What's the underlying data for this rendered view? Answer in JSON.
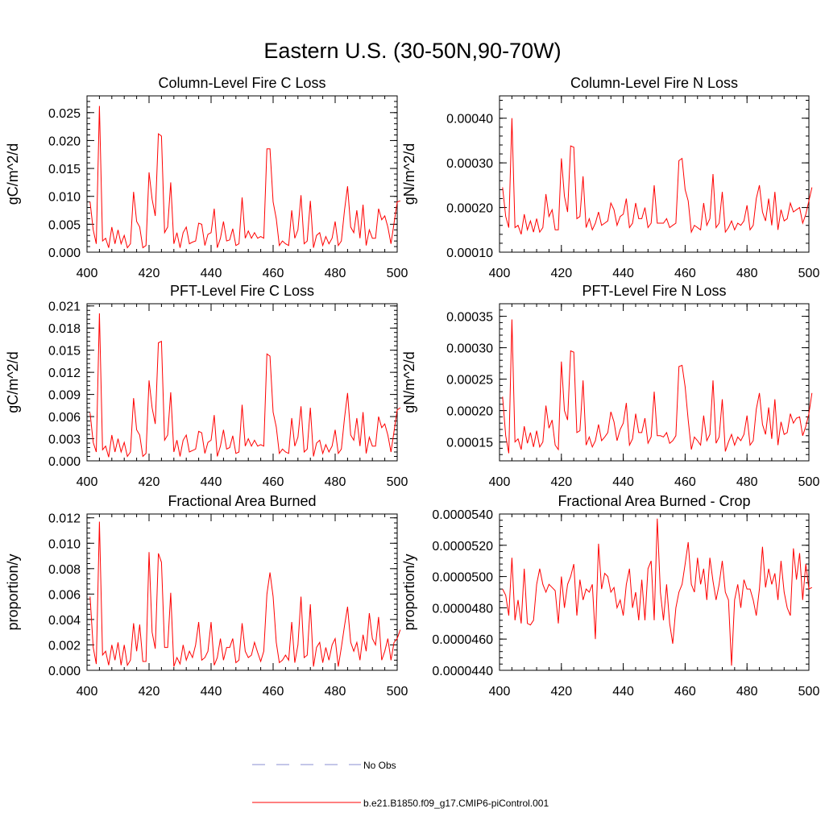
{
  "figure": {
    "title": "Eastern U.S. (30-50N,90-70W)"
  },
  "legend": {
    "entries": [
      {
        "label": "No Obs",
        "color": "#8a8fd0",
        "dashed": true
      },
      {
        "label": "b.e21.B1850.f09_g17.CMIP6-piControl.001",
        "color": "#ff0000",
        "dashed": false
      }
    ]
  },
  "chart_data": [
    {
      "type": "line",
      "title": "Column-Level Fire C Loss",
      "ylabel": "gC/m^2/d",
      "xlim": [
        400,
        500
      ],
      "ylim": [
        0,
        0.028
      ],
      "yticks": [
        0.0,
        0.005,
        0.01,
        0.015,
        0.02,
        0.025
      ],
      "yticklabels": [
        "0.000",
        "0.005",
        "0.010",
        "0.015",
        "0.020",
        "0.025"
      ],
      "xticks": [
        400,
        420,
        440,
        460,
        480,
        500
      ],
      "xticklabels": [
        "400",
        "420",
        "440",
        "460",
        "480",
        "500"
      ],
      "series": [
        {
          "color": "#ff0000",
          "x_start": 401,
          "values": [
            0.009,
            0.004,
            0.0015,
            0.0262,
            0.002,
            0.0025,
            0.0008,
            0.0045,
            0.0015,
            0.004,
            0.0015,
            0.003,
            0.0008,
            0.0015,
            0.0108,
            0.0055,
            0.0045,
            0.0008,
            0.0012,
            0.0143,
            0.0095,
            0.0065,
            0.0212,
            0.0208,
            0.0035,
            0.0045,
            0.0125,
            0.0015,
            0.0035,
            0.0008,
            0.0035,
            0.0045,
            0.0015,
            0.0018,
            0.002,
            0.0052,
            0.005,
            0.0012,
            0.0032,
            0.0035,
            0.0078,
            0.0008,
            0.0025,
            0.0055,
            0.002,
            0.0022,
            0.0042,
            0.0012,
            0.0015,
            0.0098,
            0.0025,
            0.0038,
            0.0025,
            0.0035,
            0.0025,
            0.0028,
            0.0025,
            0.0185,
            0.0185,
            0.009,
            0.006,
            0.0012,
            0.002,
            0.0015,
            0.0012,
            0.0075,
            0.0025,
            0.004,
            0.0102,
            0.0015,
            0.002,
            0.0092,
            0.0008,
            0.003,
            0.0035,
            0.0012,
            0.0028,
            0.0015,
            0.0025,
            0.0055,
            0.0012,
            0.002,
            0.0075,
            0.0118,
            0.0045,
            0.0035,
            0.0075,
            0.0025,
            0.0085,
            0.0012,
            0.004,
            0.0025,
            0.0025,
            0.0078,
            0.0058,
            0.0065,
            0.0045,
            0.0015,
            0.0052,
            0.009,
            0.0092
          ]
        }
      ]
    },
    {
      "type": "line",
      "title": "Column-Level Fire N Loss",
      "ylabel": "gN/m^2/d",
      "xlim": [
        400,
        500
      ],
      "ylim": [
        0.0001,
        0.00045
      ],
      "yticks": [
        0.0001,
        0.0002,
        0.0003,
        0.0004
      ],
      "yticklabels": [
        "0.00010",
        "0.00020",
        "0.00030",
        "0.00040"
      ],
      "xticks": [
        400,
        420,
        440,
        460,
        480,
        500
      ],
      "xticklabels": [
        "400",
        "420",
        "440",
        "460",
        "480",
        "500"
      ],
      "series": [
        {
          "color": "#ff0000",
          "x_start": 401,
          "values": [
            0.000245,
            0.00018,
            0.000155,
            0.0004,
            0.000155,
            0.00016,
            0.00014,
            0.000185,
            0.00015,
            0.00017,
            0.000145,
            0.000175,
            0.000145,
            0.000155,
            0.00023,
            0.00018,
            0.000195,
            0.00015,
            0.00015,
            0.00031,
            0.000225,
            0.00019,
            0.000338,
            0.000335,
            0.000175,
            0.00018,
            0.00027,
            0.000155,
            0.000175,
            0.00015,
            0.000165,
            0.00019,
            0.00016,
            0.000165,
            0.00017,
            0.00021,
            0.000195,
            0.00016,
            0.00018,
            0.000185,
            0.00022,
            0.000155,
            0.000165,
            0.00021,
            0.000175,
            0.000175,
            0.0002,
            0.000155,
            0.000165,
            0.00025,
            0.000165,
            0.000165,
            0.000165,
            0.000175,
            0.000155,
            0.00016,
            0.000165,
            0.000305,
            0.00031,
            0.00024,
            0.000215,
            0.000145,
            0.00016,
            0.000155,
            0.00015,
            0.00021,
            0.00016,
            0.000175,
            0.000275,
            0.000155,
            0.000165,
            0.000235,
            0.000145,
            0.000155,
            0.00017,
            0.00015,
            0.000165,
            0.00016,
            0.00017,
            0.000205,
            0.00015,
            0.00016,
            0.00022,
            0.00025,
            0.00019,
            0.00017,
            0.00022,
            0.00016,
            0.000235,
            0.00015,
            0.000195,
            0.00017,
            0.000175,
            0.00021,
            0.00019,
            0.000195,
            0.0002,
            0.000165,
            0.000185,
            0.000215,
            0.000245
          ]
        }
      ]
    },
    {
      "type": "line",
      "title": "PFT-Level Fire C Loss",
      "ylabel": "gC/m^2/d",
      "xlim": [
        400,
        500
      ],
      "ylim": [
        0,
        0.0213
      ],
      "yticks": [
        0.0,
        0.003,
        0.006,
        0.009,
        0.012,
        0.015,
        0.018,
        0.021
      ],
      "yticklabels": [
        "0.000",
        "0.003",
        "0.006",
        "0.009",
        "0.012",
        "0.015",
        "0.018",
        "0.021"
      ],
      "xticks": [
        400,
        420,
        440,
        460,
        480,
        500
      ],
      "xticklabels": [
        "400",
        "420",
        "440",
        "460",
        "480",
        "500"
      ],
      "series": [
        {
          "color": "#ff0000",
          "x_start": 401,
          "values": [
            0.0065,
            0.0025,
            0.0012,
            0.02,
            0.0015,
            0.002,
            0.0005,
            0.0035,
            0.0012,
            0.003,
            0.0012,
            0.0025,
            0.0006,
            0.0012,
            0.0085,
            0.0042,
            0.0035,
            0.0006,
            0.001,
            0.0109,
            0.0072,
            0.005,
            0.016,
            0.0162,
            0.0028,
            0.0035,
            0.0093,
            0.0012,
            0.0028,
            0.0006,
            0.0028,
            0.0035,
            0.0012,
            0.0014,
            0.0016,
            0.004,
            0.0038,
            0.001,
            0.0025,
            0.0028,
            0.0062,
            0.0006,
            0.002,
            0.0042,
            0.0016,
            0.0018,
            0.0034,
            0.001,
            0.0012,
            0.0076,
            0.002,
            0.003,
            0.002,
            0.0028,
            0.002,
            0.0022,
            0.002,
            0.0145,
            0.0142,
            0.0066,
            0.0046,
            0.001,
            0.0016,
            0.0012,
            0.001,
            0.0058,
            0.002,
            0.0032,
            0.0074,
            0.0012,
            0.0016,
            0.0072,
            0.0006,
            0.0024,
            0.0028,
            0.001,
            0.0022,
            0.0012,
            0.002,
            0.0042,
            0.001,
            0.0016,
            0.0058,
            0.0092,
            0.0035,
            0.0028,
            0.0058,
            0.002,
            0.0066,
            0.001,
            0.0032,
            0.002,
            0.002,
            0.006,
            0.0045,
            0.005,
            0.0035,
            0.0012,
            0.004,
            0.0069,
            0.0072
          ]
        }
      ]
    },
    {
      "type": "line",
      "title": "PFT-Level Fire N Loss",
      "ylabel": "gN/m^2/d",
      "xlim": [
        400,
        500
      ],
      "ylim": [
        0.00012,
        0.00037
      ],
      "yticks": [
        0.00015,
        0.0002,
        0.00025,
        0.0003,
        0.00035
      ],
      "yticklabels": [
        "0.00015",
        "0.00020",
        "0.00025",
        "0.00030",
        "0.00035"
      ],
      "xticks": [
        400,
        420,
        440,
        460,
        480,
        500
      ],
      "xticklabels": [
        "400",
        "420",
        "440",
        "460",
        "480",
        "500"
      ],
      "series": [
        {
          "color": "#ff0000",
          "x_start": 401,
          "values": [
            0.000222,
            0.00016,
            0.000132,
            0.000345,
            0.00015,
            0.000155,
            0.000138,
            0.000175,
            0.000148,
            0.000165,
            0.000142,
            0.000168,
            0.000142,
            0.00015,
            0.000208,
            0.000172,
            0.000185,
            0.000145,
            0.000138,
            0.000278,
            0.0002,
            0.000185,
            0.000295,
            0.000293,
            0.000165,
            0.000168,
            0.000248,
            0.000145,
            0.000158,
            0.000142,
            0.000152,
            0.000178,
            0.000152,
            0.000158,
            0.000165,
            0.000198,
            0.000182,
            0.000152,
            0.00017,
            0.00018,
            0.000212,
            0.000145,
            0.000155,
            0.000195,
            0.000165,
            0.000165,
            0.000188,
            0.000148,
            0.000158,
            0.00023,
            0.00016,
            0.00016,
            0.000158,
            0.000165,
            0.000148,
            0.000152,
            0.00016,
            0.00027,
            0.000272,
            0.000238,
            0.000185,
            0.000138,
            0.000158,
            0.000152,
            0.000145,
            0.000192,
            0.000152,
            0.000162,
            0.000248,
            0.000148,
            0.000158,
            0.000218,
            0.000135,
            0.00015,
            0.000162,
            0.000145,
            0.000158,
            0.000152,
            0.000162,
            0.000192,
            0.000145,
            0.000152,
            0.000202,
            0.000228,
            0.000178,
            0.000162,
            0.000205,
            0.000155,
            0.000218,
            0.000145,
            0.000182,
            0.000162,
            0.000165,
            0.000195,
            0.00018,
            0.000188,
            0.00019,
            0.00016,
            0.000175,
            0.000195,
            0.000228
          ]
        }
      ]
    },
    {
      "type": "line",
      "title": "Fractional Area Burned",
      "ylabel": "proportion/y",
      "xlim": [
        400,
        500
      ],
      "ylim": [
        0,
        0.0123
      ],
      "yticks": [
        0.0,
        0.002,
        0.004,
        0.006,
        0.008,
        0.01,
        0.012
      ],
      "yticklabels": [
        "0.000",
        "0.002",
        "0.004",
        "0.006",
        "0.008",
        "0.010",
        "0.012"
      ],
      "xticks": [
        400,
        420,
        440,
        460,
        480,
        500
      ],
      "xticklabels": [
        "400",
        "420",
        "440",
        "460",
        "480",
        "500"
      ],
      "series": [
        {
          "color": "#ff0000",
          "x_start": 401,
          "values": [
            0.0058,
            0.0018,
            0.0005,
            0.0117,
            0.0012,
            0.0015,
            0.0004,
            0.002,
            0.0008,
            0.0022,
            0.0004,
            0.002,
            0.0004,
            0.0008,
            0.0037,
            0.0015,
            0.0036,
            0.0007,
            0.0007,
            0.0093,
            0.003,
            0.0017,
            0.0092,
            0.0085,
            0.0018,
            0.0018,
            0.0061,
            0.0003,
            0.001,
            0.0005,
            0.002,
            0.0008,
            0.0015,
            0.001,
            0.002,
            0.0038,
            0.0008,
            0.001,
            0.0015,
            0.0038,
            0.0004,
            0.001,
            0.0025,
            0.0008,
            0.0018,
            0.0018,
            0.0025,
            0.0006,
            0.0008,
            0.0037,
            0.0015,
            0.001,
            0.0012,
            0.0022,
            0.0014,
            0.0007,
            0.0015,
            0.006,
            0.0077,
            0.0058,
            0.0022,
            0.0006,
            0.0008,
            0.0012,
            0.0008,
            0.0038,
            0.0006,
            0.002,
            0.0058,
            0.001,
            0.0012,
            0.0052,
            0.0003,
            0.0018,
            0.0022,
            0.0006,
            0.0018,
            0.0008,
            0.002,
            0.0025,
            0.0003,
            0.0018,
            0.0035,
            0.005,
            0.0022,
            0.0015,
            0.0022,
            0.0008,
            0.0028,
            0.0015,
            0.0045,
            0.0025,
            0.002,
            0.0042,
            0.0008,
            0.0015,
            0.0025,
            0.0008,
            0.0022,
            0.0025,
            0.0032
          ]
        }
      ]
    },
    {
      "type": "line",
      "title": "Fractional Area Burned - Crop",
      "ylabel": "proportion/y",
      "xlim": [
        400,
        500
      ],
      "ylim": [
        4.4e-05,
        5.4e-05
      ],
      "yticks": [
        4.4e-05,
        4.6e-05,
        4.8e-05,
        5e-05,
        5.2e-05,
        5.4e-05
      ],
      "yticklabels": [
        "0.0000440",
        "0.0000460",
        "0.0000480",
        "0.0000500",
        "0.0000520",
        "0.0000540"
      ],
      "xticks": [
        400,
        420,
        440,
        460,
        480,
        500
      ],
      "xticklabels": [
        "400",
        "420",
        "440",
        "460",
        "480",
        "500"
      ],
      "series": [
        {
          "color": "#ff0000",
          "x_start": 401,
          "values": [
            4.92e-05,
            4.88e-05,
            4.75e-05,
            5.12e-05,
            4.72e-05,
            4.85e-05,
            4.7e-05,
            5.05e-05,
            4.7e-05,
            4.69e-05,
            4.72e-05,
            4.95e-05,
            5.05e-05,
            4.95e-05,
            4.9e-05,
            4.95e-05,
            4.93e-05,
            4.91e-05,
            4.7e-05,
            5e-05,
            4.8e-05,
            4.95e-05,
            5e-05,
            5.08e-05,
            4.75e-05,
            4.98e-05,
            4.85e-05,
            4.92e-05,
            4.9e-05,
            4.95e-05,
            4.6e-05,
            5.21e-05,
            4.92e-05,
            5.02e-05,
            5e-05,
            4.9e-05,
            4.93e-05,
            4.8e-05,
            4.85e-05,
            4.75e-05,
            4.95e-05,
            5.05e-05,
            4.8e-05,
            4.9e-05,
            4.72e-05,
            4.98e-05,
            4.72e-05,
            5.05e-05,
            5.1e-05,
            4.72e-05,
            5.37e-05,
            4.9e-05,
            4.72e-05,
            4.95e-05,
            4.7e-05,
            4.57e-05,
            4.8e-05,
            4.9e-05,
            4.95e-05,
            5.08e-05,
            5.22e-05,
            4.95e-05,
            4.9e-05,
            5.12e-05,
            4.95e-05,
            5.05e-05,
            4.85e-05,
            5.12e-05,
            4.97e-05,
            4.85e-05,
            4.95e-05,
            5.1e-05,
            4.9e-05,
            4.85e-05,
            4.43e-05,
            4.85e-05,
            4.95e-05,
            4.8e-05,
            4.98e-05,
            4.92e-05,
            4.92e-05,
            4.85e-05,
            4.75e-05,
            4.92e-05,
            5.19e-05,
            4.93e-05,
            5.05e-05,
            4.95e-05,
            5.02e-05,
            4.85e-05,
            5.1e-05,
            4.9e-05,
            4.8e-05,
            4.75e-05,
            5.18e-05,
            4.98e-05,
            5.15e-05,
            4.85e-05,
            5.08e-05,
            4.92e-05,
            4.93e-05
          ]
        }
      ]
    }
  ]
}
